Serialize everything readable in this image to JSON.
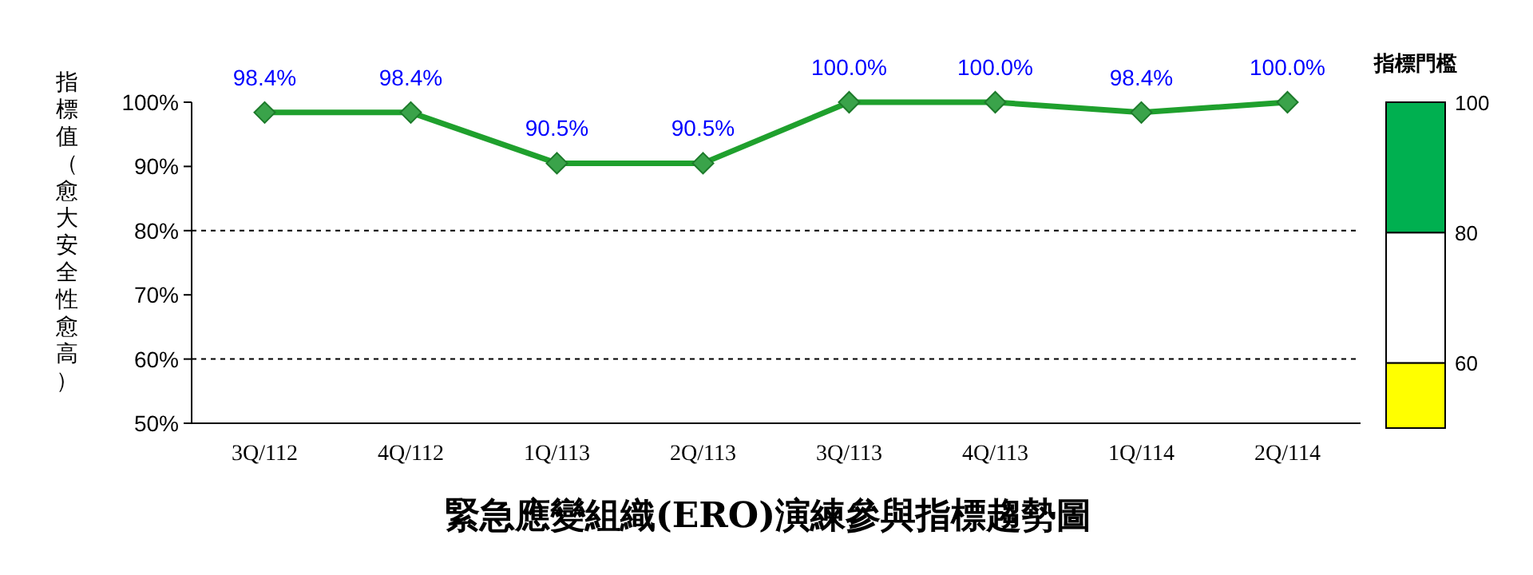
{
  "chart_data": [
    {
      "type": "line",
      "title": "緊急應變組織(ERO)演練參與指標趨勢圖",
      "ylabel": "指標值（愈大安全性愈高）",
      "categories": [
        "3Q/112",
        "4Q/112",
        "1Q/113",
        "2Q/113",
        "3Q/113",
        "4Q/113",
        "1Q/114",
        "2Q/114"
      ],
      "series": [
        {
          "color": "#1fa02d",
          "values": [
            98.4,
            98.4,
            90.5,
            90.5,
            100,
            100,
            98.4,
            100
          ],
          "value_labels": [
            "98.4%",
            "98.4%",
            "90.5%",
            "90.5%",
            "100.0%",
            "100.0%",
            "98.4%",
            "100.0%"
          ]
        }
      ],
      "ylim": [
        50,
        100
      ],
      "yticks": [
        {
          "value": 50,
          "label": "50%"
        },
        {
          "value": 60,
          "label": "60%"
        },
        {
          "value": 70,
          "label": "70%"
        },
        {
          "value": 80,
          "label": "80%"
        },
        {
          "value": 90,
          "label": "90%"
        },
        {
          "value": 100,
          "label": "100%"
        }
      ],
      "ref_lines": [
        {
          "axis": "y",
          "value": 80,
          "color": "#000000",
          "line_style": "dashed"
        },
        {
          "axis": "y",
          "value": 60,
          "color": "#000000",
          "line_style": "dashed"
        }
      ],
      "marker": "diamond",
      "line_style": "solid"
    },
    {
      "type": "bar",
      "title": "指標門檻",
      "categories": [
        null
      ],
      "series": [
        {
          "color": "#ffff00",
          "values": [
            10
          ],
          "base": [
            50
          ]
        },
        {
          "color": "#ffffff",
          "values": [
            20
          ],
          "base": [
            60
          ]
        },
        {
          "color": "#00b050",
          "values": [
            20
          ],
          "base": [
            80
          ]
        }
      ],
      "ylim": [
        50,
        100
      ],
      "yticks": [
        60,
        80,
        100
      ]
    }
  ]
}
